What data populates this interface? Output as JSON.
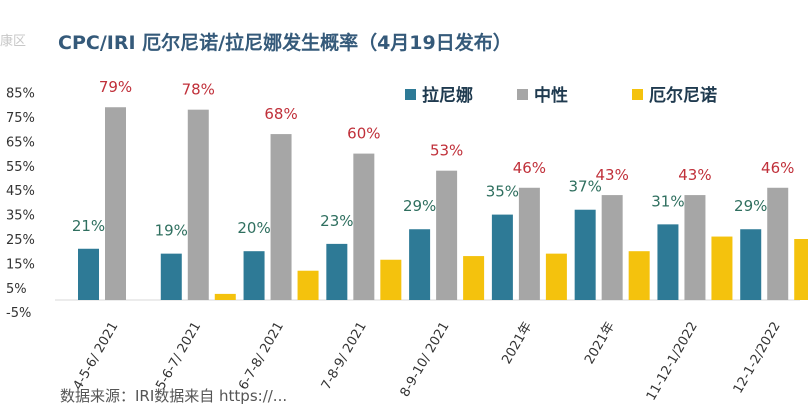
{
  "header": {
    "title": "CPC/IRI 厄尔尼诺/拉尼娜发生概率（4月19日发布）",
    "corner_fragment": "康区"
  },
  "footer": {
    "source": "数据来源：IRI数据来自 https://..."
  },
  "colors": {
    "la_nina": "#2E7A96",
    "neutral": "#A6A6A6",
    "el_nino": "#F4C20D",
    "neutral_label": "#C0303A",
    "la_nina_label": "#2F6F5F"
  },
  "chart_data": {
    "type": "bar",
    "title": "CPC/IRI 厄尔尼诺/拉尼娜发生概率（4月19日发布）",
    "categories": [
      "4-5-6/ 2021",
      "5-6-7/ 2021",
      "6-7-8/ 2021",
      "7-8-9/ 2021",
      "8-9-10/ 2021",
      "2021年",
      "2021年",
      "11-12-1/2022",
      "12-1-2/2022"
    ],
    "series": [
      {
        "name": "拉尼娜",
        "values": [
          21,
          19,
          20,
          23,
          29,
          35,
          37,
          31,
          29
        ]
      },
      {
        "name": "中性",
        "values": [
          79,
          78,
          68,
          60,
          53,
          46,
          43,
          43,
          46
        ]
      },
      {
        "name": "厄尔尼诺",
        "values": [
          0,
          2.5,
          12,
          16.5,
          18,
          19,
          20,
          26,
          25
        ]
      }
    ],
    "data_labels": {
      "拉尼娜": [
        "21%",
        "19%",
        "20%",
        "23%",
        "29%",
        "35%",
        "37%",
        "31%",
        "29%"
      ],
      "中性": [
        "79%",
        "78%",
        "68%",
        "60%",
        "53%",
        "46%",
        "43%",
        "43%",
        "46%"
      ]
    },
    "yticks": [
      "85%",
      "75%",
      "65%",
      "55%",
      "45%",
      "35%",
      "25%",
      "15%",
      "5%",
      "-5%"
    ],
    "ylim": [
      -5,
      85
    ],
    "legend_position": "top-right"
  }
}
